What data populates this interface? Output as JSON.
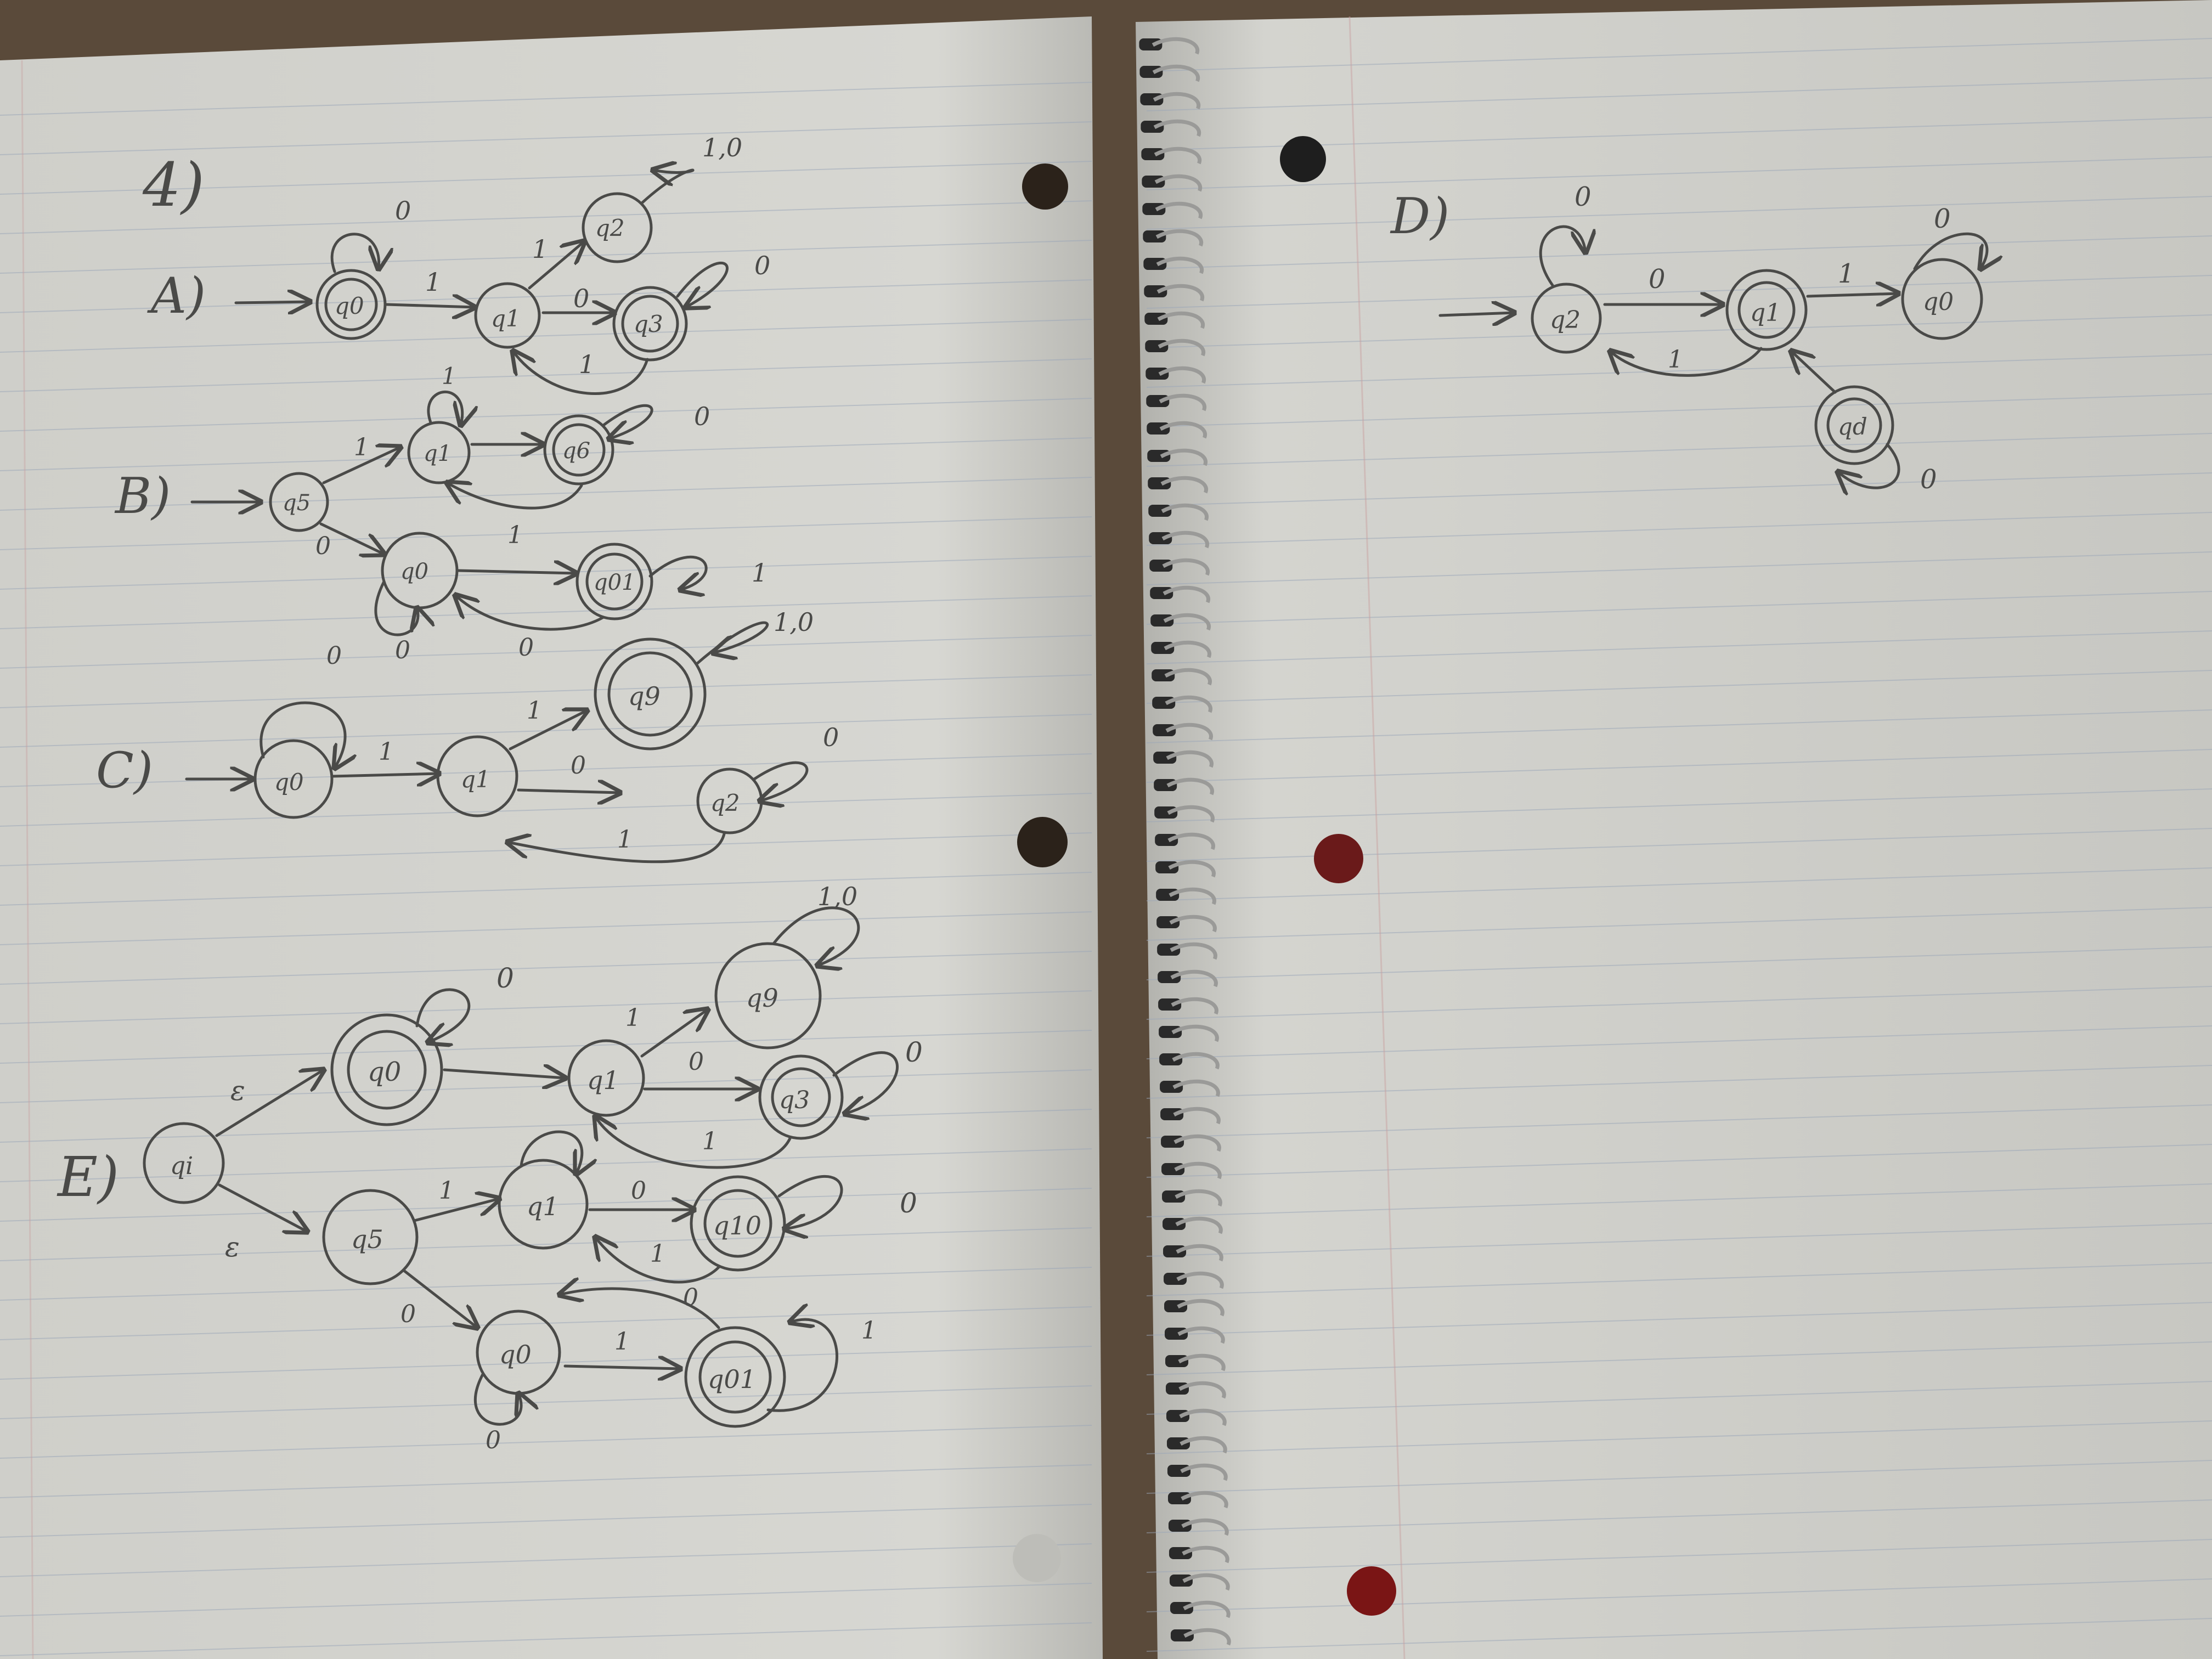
{
  "colors": {
    "paper": "#d9d9d4",
    "paper_shadow": "#a9a9a4",
    "rule_line": "#9aa6b8",
    "margin_line": "#c9a0a0",
    "pencil": "#4a4a48",
    "desk": "#5a4a3a",
    "binding": "#2a2a2a"
  },
  "left_page": {
    "problem_label": "4)",
    "diagrams": {
      "A": {
        "label": "A)",
        "states": [
          "q0",
          "q1",
          "q2",
          "q3"
        ],
        "transitions": [
          {
            "from": "q0",
            "to": "q0",
            "label": "0"
          },
          {
            "from": "q0",
            "to": "q1",
            "label": "1"
          },
          {
            "from": "q1",
            "to": "q2",
            "label": "1"
          },
          {
            "from": "q1",
            "to": "q3",
            "label": "0"
          },
          {
            "from": "q2",
            "to": "q2",
            "label": "1,0"
          },
          {
            "from": "q3",
            "to": "q3",
            "label": "0"
          },
          {
            "from": "q3",
            "to": "q1",
            "label": "1"
          }
        ]
      },
      "B": {
        "label": "B)",
        "states": [
          "q5",
          "q1",
          "q6",
          "q0",
          "q01"
        ],
        "transitions": [
          {
            "from": "q5",
            "to": "q1",
            "label": "1"
          },
          {
            "from": "q5",
            "to": "q0",
            "label": "0"
          },
          {
            "from": "q1",
            "to": "q1",
            "label": "1"
          },
          {
            "from": "q6",
            "to": "q6",
            "label": "0"
          },
          {
            "from": "q0",
            "to": "q0",
            "label": "0"
          },
          {
            "from": "q0",
            "to": "q01",
            "label": "1"
          },
          {
            "from": "q01",
            "to": "q01",
            "label": "1"
          },
          {
            "from": "q01",
            "to": "q0",
            "label": "0"
          }
        ]
      },
      "C": {
        "label": "C)",
        "states": [
          "q0",
          "q1",
          "q9",
          "q2"
        ],
        "transitions": [
          {
            "from": "q0",
            "to": "q0",
            "label": "0"
          },
          {
            "from": "q0",
            "to": "q1",
            "label": "1"
          },
          {
            "from": "q1",
            "to": "q9",
            "label": "1"
          },
          {
            "from": "q1",
            "to": "q2",
            "label": "0"
          },
          {
            "from": "q9",
            "to": "q9",
            "label": "1,0"
          },
          {
            "from": "q2",
            "to": "q2",
            "label": "0"
          },
          {
            "from": "q2",
            "to": "q1",
            "label": "1"
          }
        ]
      },
      "E": {
        "label": "E)",
        "states": [
          "qi",
          "q0",
          "q1",
          "q9",
          "q3",
          "q5",
          "q1",
          "q10",
          "q0",
          "q01"
        ],
        "epsilon": "ε",
        "transitions": [
          {
            "from": "qi",
            "to": "q0",
            "label": "ε"
          },
          {
            "from": "qi",
            "to": "q5",
            "label": "ε"
          },
          {
            "from": "q0",
            "to": "q0",
            "label": "0"
          },
          {
            "from": "q1",
            "to": "q9",
            "label": "1"
          },
          {
            "from": "q1",
            "to": "q3",
            "label": "0"
          },
          {
            "from": "q9",
            "to": "q9",
            "label": "1,0"
          },
          {
            "from": "q3",
            "to": "q3",
            "label": "0"
          },
          {
            "from": "q3",
            "to": "q1",
            "label": "1"
          },
          {
            "from": "q5",
            "to": "q1",
            "label": "1"
          },
          {
            "from": "q5",
            "to": "q0",
            "label": "0"
          },
          {
            "from": "q1",
            "to": "q10",
            "label": "0"
          },
          {
            "from": "q10",
            "to": "q10",
            "label": "0"
          },
          {
            "from": "q10",
            "to": "q1",
            "label": "1"
          },
          {
            "from": "q0",
            "to": "q0",
            "label": "0"
          },
          {
            "from": "q0",
            "to": "q01",
            "label": "1"
          },
          {
            "from": "q01",
            "to": "q01",
            "label": "1"
          },
          {
            "from": "q01",
            "to": "q0",
            "label": "0"
          }
        ]
      }
    }
  },
  "right_page": {
    "diagram_D": {
      "label": "D)",
      "states": [
        "q2",
        "q1",
        "q0",
        "qd"
      ],
      "transitions": [
        {
          "from": "q2",
          "to": "q2",
          "label": "0"
        },
        {
          "from": "q2",
          "to": "q1",
          "label": "0"
        },
        {
          "from": "q1",
          "to": "q0",
          "label": "1"
        },
        {
          "from": "q1",
          "to": "q2",
          "label": "1"
        },
        {
          "from": "q0",
          "to": "q0",
          "label": "0"
        },
        {
          "from": "qd",
          "to": "qd",
          "label": "0"
        },
        {
          "from": "qd",
          "to": "q1",
          "label": ""
        }
      ]
    }
  }
}
